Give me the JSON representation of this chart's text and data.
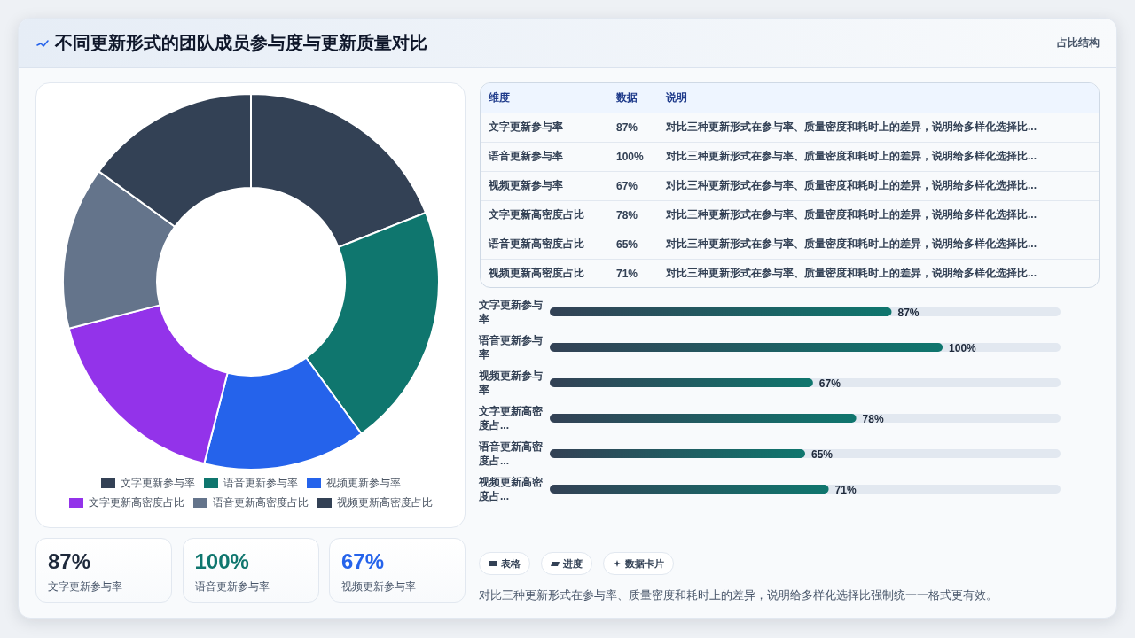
{
  "chart_data": [
    {
      "type": "donut",
      "title": "不同更新形式的团队成员参与度与更新质量对比",
      "annotations": [
        "占比结构"
      ],
      "categories": [
        "文字更新参与率",
        "语音更新参与率",
        "视频更新参与率",
        "文字更新高密度占比",
        "语音更新高密度占比",
        "视频更新高密度占比"
      ],
      "values": [
        19,
        21,
        14,
        17,
        14,
        15
      ],
      "colors": [
        "#334155",
        "#0f766e",
        "#2563eb",
        "#9333ea",
        "#64748b",
        "#334155"
      ],
      "legend": "bottom"
    },
    {
      "type": "other",
      "categories": [
        "维度",
        "数据",
        "说明"
      ],
      "cell_labels": [
        [
          "文字更新参与率",
          "87%",
          "对比三种更新形式在参与率、质量密度和耗时上的差异，说明给多样化选择比..."
        ],
        [
          "语音更新参与率",
          "100%",
          "对比三种更新形式在参与率、质量密度和耗时上的差异，说明给多样化选择比..."
        ],
        [
          "视频更新参与率",
          "67%",
          "对比三种更新形式在参与率、质量密度和耗时上的差异，说明给多样化选择比..."
        ],
        [
          "文字更新高密度占比",
          "78%",
          "对比三种更新形式在参与率、质量密度和耗时上的差异，说明给多样化选择比..."
        ],
        [
          "语音更新高密度占比",
          "65%",
          "对比三种更新形式在参与率、质量密度和耗时上的差异，说明给多样化选择比..."
        ],
        [
          "视频更新高密度占比",
          "71%",
          "对比三种更新形式在参与率、质量密度和耗时上的差异，说明给多样化选择比..."
        ]
      ]
    },
    {
      "type": "bar",
      "orientation": "horizontal",
      "categories": [
        "文字更新参与率",
        "语音更新参与率",
        "视频更新参与率",
        "文字更新高密度占...",
        "语音更新高密度占...",
        "视频更新高密度占..."
      ],
      "values": [
        87,
        100,
        67,
        78,
        65,
        71
      ],
      "value_labels": [
        "87%",
        "100%",
        "67%",
        "78%",
        "65%",
        "71%"
      ],
      "color": "#0f766e",
      "xlim": [
        0,
        130
      ],
      "tick_labels": "y"
    },
    {
      "type": "other",
      "categories": [
        "文字更新参与率",
        "语音更新参与率",
        "视频更新参与率"
      ],
      "value_labels": [
        "87%",
        "100%",
        "67%"
      ]
    },
    {
      "type": "other",
      "categories": [
        "表格",
        "进度",
        "数据卡片"
      ],
      "annotations": [
        "对比三种更新形式在参与率、质量密度和耗时上的差异，说明给多样化选择比强制统一一格式更有效。"
      ]
    }
  ]
}
